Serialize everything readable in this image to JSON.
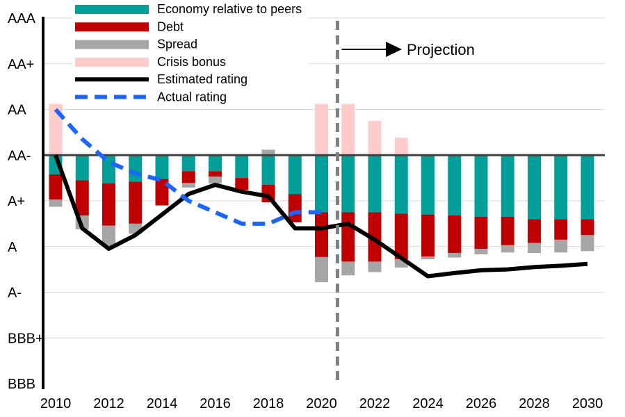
{
  "chart_data": {
    "type": "bar",
    "title": "",
    "xlabel": "",
    "ylabel": "",
    "years": [
      2010,
      2011,
      2012,
      2013,
      2014,
      2015,
      2016,
      2017,
      2018,
      2019,
      2020,
      2021,
      2022,
      2023,
      2024,
      2025,
      2026,
      2027,
      2028,
      2029,
      2030
    ],
    "x_tick_labels": [
      "2010",
      "2012",
      "2014",
      "2016",
      "2018",
      "2020",
      "2022",
      "2024",
      "2026",
      "2028",
      "2030"
    ],
    "y_ticks": [
      {
        "label": "AAA",
        "value": 6
      },
      {
        "label": "AA+",
        "value": 5
      },
      {
        "label": "AA",
        "value": 4
      },
      {
        "label": "AA-",
        "value": 3
      },
      {
        "label": "A+",
        "value": 2
      },
      {
        "label": "A",
        "value": 1
      },
      {
        "label": "A-",
        "value": 0
      },
      {
        "label": "BBB+",
        "value": -1
      },
      {
        "label": "BBB",
        "value": -2
      }
    ],
    "ylim": [
      -2,
      6
    ],
    "baseline": 3,
    "legend_position": "top-left",
    "series": [
      {
        "name": "Economy relative to peers",
        "kind": "bar",
        "color": "#009f99",
        "values": [
          -0.42,
          -0.55,
          -0.62,
          -0.58,
          -0.52,
          -0.35,
          -0.35,
          -0.5,
          -0.65,
          -0.85,
          -1.25,
          -1.25,
          -1.25,
          -1.28,
          -1.3,
          -1.32,
          -1.35,
          -1.35,
          -1.4,
          -1.4,
          -1.4
        ]
      },
      {
        "name": "Debt",
        "kind": "bar",
        "color": "#c00000",
        "values": [
          -0.55,
          -0.77,
          -0.92,
          -0.92,
          -0.58,
          -0.26,
          -0.12,
          -0.26,
          -0.38,
          -0.62,
          -0.98,
          -1.08,
          -1.08,
          -1.0,
          -0.92,
          -0.82,
          -0.7,
          -0.62,
          -0.52,
          -0.45,
          -0.35
        ]
      },
      {
        "name": "Spread",
        "kind": "bar",
        "color": "#a6a6a6",
        "values": [
          -0.16,
          -0.3,
          -0.45,
          -0.22,
          0.0,
          -0.1,
          -0.15,
          0.0,
          0.12,
          0.0,
          -0.55,
          -0.3,
          -0.23,
          -0.18,
          -0.06,
          -0.1,
          -0.12,
          -0.16,
          -0.22,
          -0.28,
          -0.35
        ]
      },
      {
        "name": "Crisis bonus",
        "kind": "bar",
        "color": "#ffcccc",
        "values": [
          1.12,
          0,
          0,
          0,
          0,
          0,
          0,
          0,
          0,
          0,
          1.12,
          1.12,
          0.75,
          0.38,
          0,
          0,
          0,
          0,
          0,
          0,
          0
        ]
      },
      {
        "name": "Estimated rating",
        "kind": "line",
        "style": "solid",
        "color": "#000000",
        "values": [
          3.0,
          1.4,
          0.95,
          1.25,
          1.7,
          2.15,
          2.35,
          2.2,
          2.1,
          1.4,
          1.4,
          1.5,
          1.15,
          0.75,
          0.35,
          0.42,
          0.48,
          0.5,
          0.55,
          0.58,
          0.62
        ]
      },
      {
        "name": "Actual rating",
        "kind": "line",
        "style": "dashed",
        "color": "#1a66ff",
        "values": [
          4.0,
          3.35,
          2.85,
          2.6,
          2.45,
          2.0,
          1.75,
          1.5,
          1.5,
          1.75,
          1.75,
          null,
          null,
          null,
          null,
          null,
          null,
          null,
          null,
          null,
          null
        ]
      }
    ],
    "annotations": [
      {
        "text": "Projection",
        "from_year": 2020.6
      }
    ]
  }
}
